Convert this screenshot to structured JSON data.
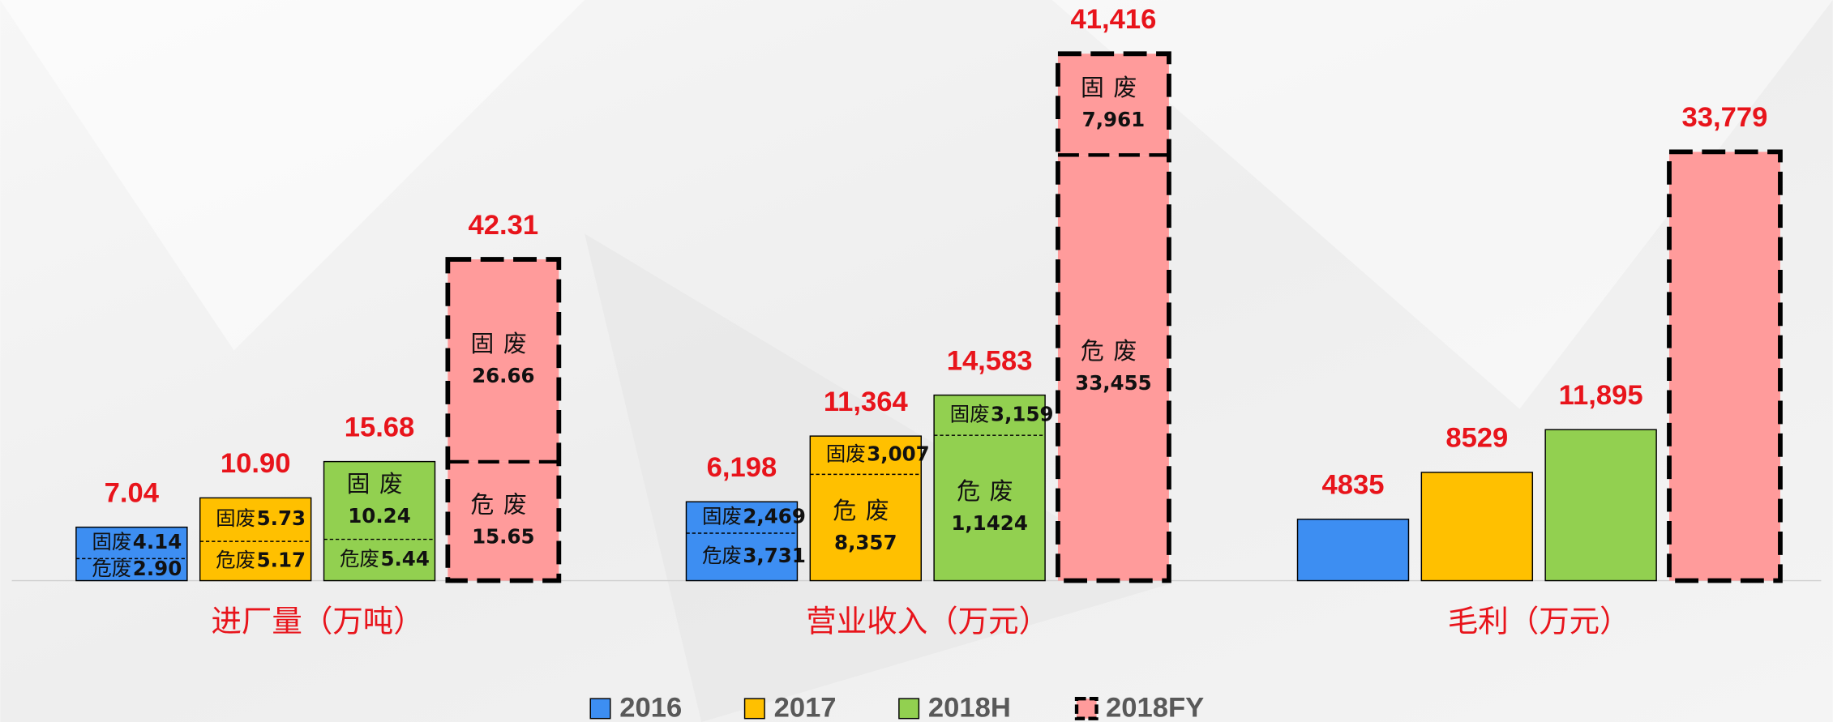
{
  "chart_data": {
    "type": "bar",
    "series": [
      {
        "name": "2016",
        "color": "#3d8ef2"
      },
      {
        "name": "2017",
        "color": "#ffc000"
      },
      {
        "name": "2018H",
        "color": "#92d050"
      },
      {
        "name": "2018FY",
        "color": "#ff9b9b"
      }
    ],
    "groups": [
      {
        "label": "进厂量（万吨）",
        "values": [
          7.04,
          10.9,
          15.68,
          42.31
        ],
        "value_labels": [
          "7.04",
          "10.90",
          "15.68",
          "42.31"
        ],
        "segments": [
          [
            {
              "name": "危废",
              "value": 2.9,
              "label": "2.90"
            },
            {
              "name": "固废",
              "value": 4.14,
              "label": "4.14"
            }
          ],
          [
            {
              "name": "危废",
              "value": 5.17,
              "label": "5.17"
            },
            {
              "name": "固废",
              "value": 5.73,
              "label": "5.73"
            }
          ],
          [
            {
              "name": "危废",
              "value": 5.44,
              "label": "5.44"
            },
            {
              "name": "固废",
              "value": 10.24,
              "label": "10.24"
            }
          ],
          [
            {
              "name": "危废",
              "value": 15.65,
              "label": "15.65"
            },
            {
              "name": "固废",
              "value": 26.66,
              "label": "26.66"
            }
          ]
        ]
      },
      {
        "label": "营业收入（万元）",
        "values": [
          6198,
          11364,
          14583,
          41416
        ],
        "value_labels": [
          "6,198",
          "11,364",
          "14,583",
          "41,416"
        ],
        "segments": [
          [
            {
              "name": "危废",
              "value": 3731,
              "label": "3,731"
            },
            {
              "name": "固废",
              "value": 2469,
              "label": "2,469"
            }
          ],
          [
            {
              "name": "危废",
              "value": 8357,
              "label": "8,357"
            },
            {
              "name": "固废",
              "value": 3007,
              "label": "3,007"
            }
          ],
          [
            {
              "name": "危废",
              "value": 11424,
              "label": "1,1424"
            },
            {
              "name": "固废",
              "value": 3159,
              "label": "3,159"
            }
          ],
          [
            {
              "name": "危废",
              "value": 33455,
              "label": "33,455"
            },
            {
              "name": "固废",
              "value": 7961,
              "label": "7,961"
            }
          ]
        ]
      },
      {
        "label": "毛利（万元）",
        "values": [
          4835,
          8529,
          11895,
          33779
        ],
        "value_labels": [
          "4835",
          "8529",
          "11,895",
          "33,779"
        ]
      }
    ]
  }
}
